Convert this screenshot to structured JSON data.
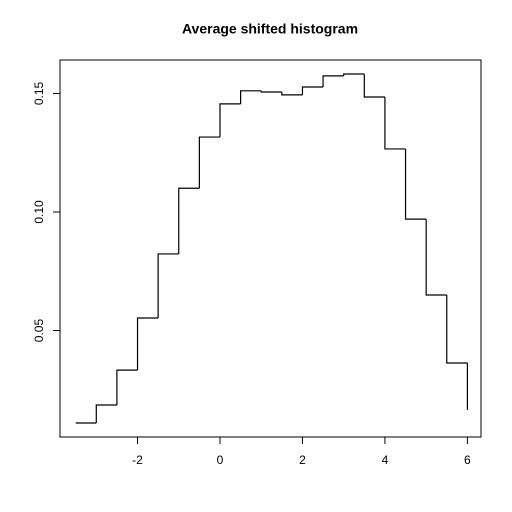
{
  "chart_data": {
    "type": "step",
    "title": "Average shifted histogram",
    "x": [
      -3.5,
      -3.0,
      -2.5,
      -2.0,
      -1.5,
      -1.0,
      -0.5,
      0.0,
      0.5,
      1.0,
      1.5,
      2.0,
      2.5,
      3.0,
      3.5,
      4.0,
      4.5,
      5.0,
      5.5,
      6.0
    ],
    "values": [
      0.011,
      0.0186,
      0.0333,
      0.0553,
      0.0823,
      0.11,
      0.1316,
      0.1456,
      0.1511,
      0.1506,
      0.1494,
      0.1527,
      0.1574,
      0.1582,
      0.1485,
      0.1266,
      0.097,
      0.065,
      0.0363,
      0.0165
    ],
    "color": "#000000",
    "xlim": [
      -3.88,
      6.33
    ],
    "xticks": [
      -2,
      0,
      2,
      4,
      6
    ],
    "ylim": [
      0.0051,
      0.1641
    ],
    "yticks": [
      0.05,
      {
        "value": 0.1,
        "label": "0.10"
      },
      0.15
    ]
  }
}
